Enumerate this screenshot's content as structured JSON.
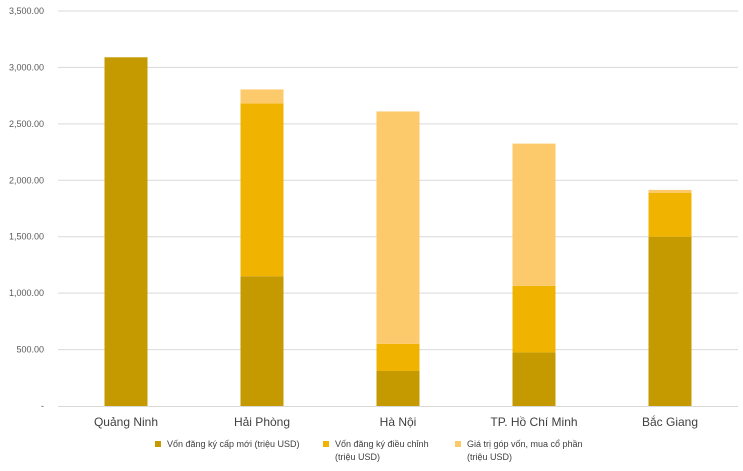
{
  "chart_data": {
    "type": "bar",
    "stacked": true,
    "title": "",
    "xlabel": "",
    "ylabel": "",
    "ylim": [
      0,
      3500
    ],
    "yticks": [
      {
        "value": 0,
        "label": "-"
      },
      {
        "value": 500,
        "label": "500.00"
      },
      {
        "value": 1000,
        "label": "1,000.00"
      },
      {
        "value": 1500,
        "label": "1,500.00"
      },
      {
        "value": 2000,
        "label": "2,000.00"
      },
      {
        "value": 2500,
        "label": "2,500.00"
      },
      {
        "value": 3000,
        "label": "3,000.00"
      },
      {
        "value": 3500,
        "label": "3,500.00"
      }
    ],
    "grid": true,
    "legend_position": "bottom",
    "categories": [
      "Quảng Ninh",
      "Hải Phòng",
      "Hà Nội",
      "TP. Hồ Chí Minh",
      "Bắc Giang"
    ],
    "series": [
      {
        "name": "Vốn đăng ký cấp mới (triệu USD)",
        "legend_lines": [
          "Vốn đăng ký cấp mới (triệu USD)"
        ],
        "color": "#c49a00",
        "values": [
          3090,
          1150,
          310,
          475,
          1500
        ]
      },
      {
        "name": "Vốn đăng ký điều chỉnh (triệu USD)",
        "legend_lines": [
          "Vốn đăng ký điều chỉnh",
          "(triệu USD)"
        ],
        "color": "#f0b400",
        "values": [
          0,
          1530,
          240,
          590,
          390
        ]
      },
      {
        "name": "Giá trị góp vốn, mua cổ phần (triệu USD)",
        "legend_lines": [
          "Giá trị góp vốn, mua cổ phần",
          "(triệu USD)"
        ],
        "color": "#fdca6b",
        "values": [
          0,
          125,
          2060,
          1260,
          25
        ]
      }
    ]
  }
}
